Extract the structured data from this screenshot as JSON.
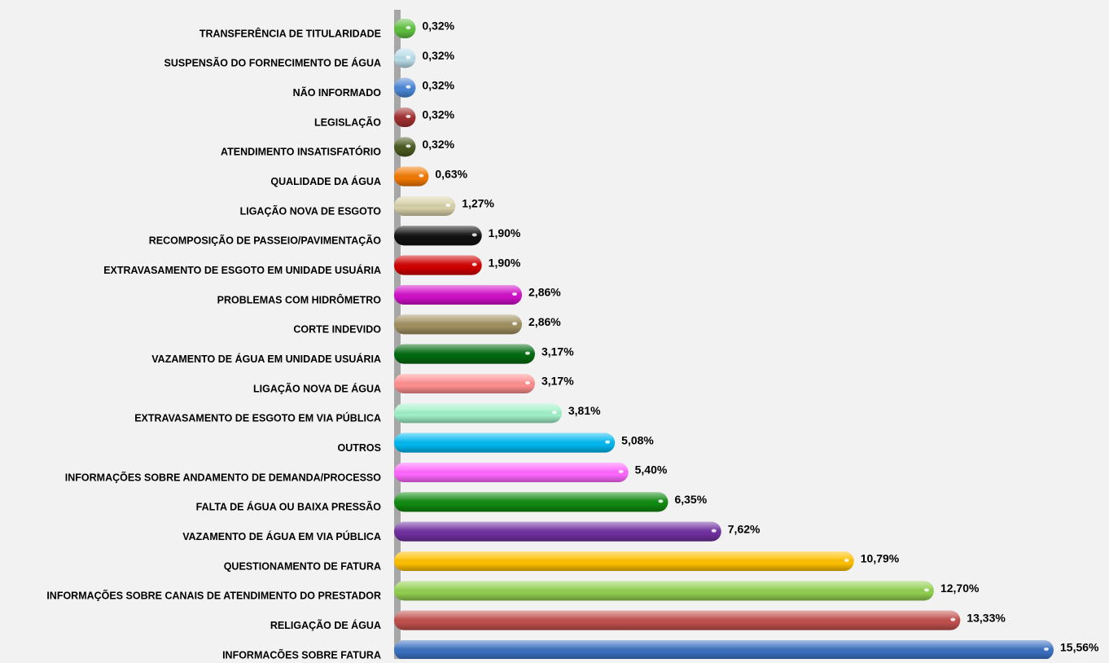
{
  "chart_data": {
    "type": "bar",
    "orientation": "horizontal",
    "categories": [
      "TRANSFERÊNCIA DE TITULARIDADE",
      "SUSPENSÃO DO FORNECIMENTO DE ÁGUA",
      "NÃO INFORMADO",
      "LEGISLAÇÃO",
      "ATENDIMENTO INSATISFATÓRIO",
      "QUALIDADE DA ÁGUA",
      "LIGAÇÃO NOVA DE ESGOTO",
      "RECOMPOSIÇÃO DE PASSEIO/PAVIMENTAÇÃO",
      "EXTRAVASAMENTO DE ESGOTO EM UNIDADE USUÁRIA",
      "PROBLEMAS COM HIDRÔMETRO",
      "CORTE INDEVIDO",
      "VAZAMENTO DE ÁGUA EM UNIDADE USUÁRIA",
      "LIGAÇÃO NOVA DE ÁGUA",
      "EXTRAVASAMENTO DE ESGOTO EM VIA PÚBLICA",
      "OUTROS",
      "INFORMAÇÕES SOBRE ANDAMENTO DE DEMANDA/PROCESSO",
      "FALTA DE ÁGUA OU BAIXA PRESSÃO",
      "VAZAMENTO DE ÁGUA EM VIA PÚBLICA",
      "QUESTIONAMENTO DE FATURA",
      "INFORMAÇÕES SOBRE CANAIS DE ATENDIMENTO DO PRESTADOR",
      "RELIGAÇÃO DE ÁGUA",
      "INFORMAÇÕES SOBRE FATURA"
    ],
    "values": [
      0.32,
      0.32,
      0.32,
      0.32,
      0.32,
      0.63,
      1.27,
      1.9,
      1.9,
      2.86,
      2.86,
      3.17,
      3.17,
      3.81,
      5.08,
      5.4,
      6.35,
      7.62,
      10.79,
      12.7,
      13.33,
      15.56
    ],
    "value_labels": [
      "0,32%",
      "0,32%",
      "0,32%",
      "0,32%",
      "0,32%",
      "0,63%",
      "1,27%",
      "1,90%",
      "1,90%",
      "2,86%",
      "2,86%",
      "3,17%",
      "3,17%",
      "3,81%",
      "5,08%",
      "5,40%",
      "6,35%",
      "7,62%",
      "10,79%",
      "12,70%",
      "13,33%",
      "15,56%"
    ],
    "colors": [
      "#5fc040",
      "#b8dce8",
      "#4a86d4",
      "#a03030",
      "#4a5a20",
      "#f07800",
      "#d8d0a8",
      "#111111",
      "#d00000",
      "#d010c8",
      "#a09060",
      "#006a10",
      "#ff8f8f",
      "#a0f0c8",
      "#00b8f0",
      "#ff66ff",
      "#108a10",
      "#7030a0",
      "#ffc000",
      "#92d050",
      "#c0504d",
      "#3a70c0"
    ]
  }
}
